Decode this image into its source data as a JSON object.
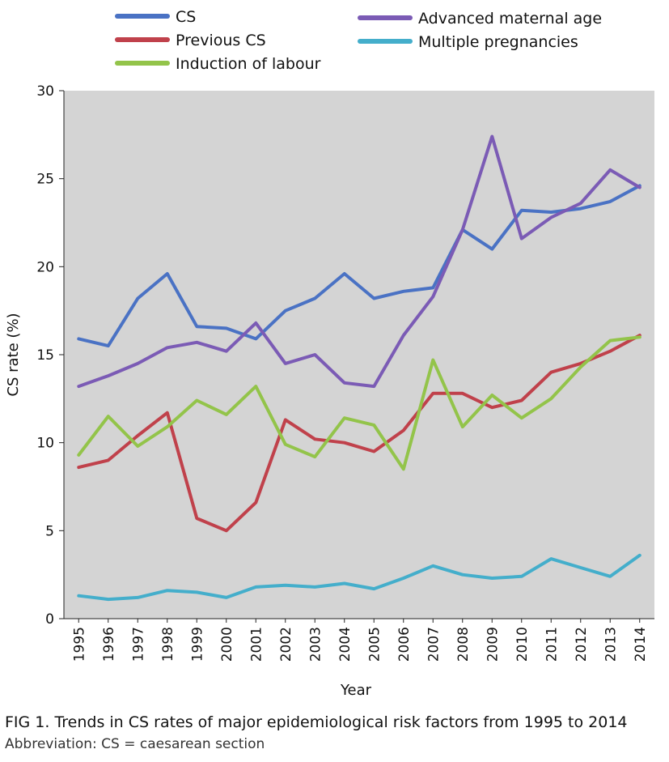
{
  "chart_data": {
    "type": "line",
    "xlabel": "Year",
    "ylabel": "CS rate (%)",
    "ylim": [
      0,
      30
    ],
    "yticks": [
      0,
      5,
      10,
      15,
      20,
      25,
      30
    ],
    "grid": false,
    "legend_position": "top",
    "categories": [
      "1995",
      "1996",
      "1997",
      "1998",
      "1999",
      "2000",
      "2001",
      "2002",
      "2003",
      "2004",
      "2005",
      "2006",
      "2007",
      "2008",
      "2009",
      "2010",
      "2011",
      "2012",
      "2013",
      "2014"
    ],
    "series": [
      {
        "name": "CS",
        "color": "#4a72c4",
        "values": [
          15.9,
          15.5,
          18.2,
          19.6,
          16.6,
          16.5,
          15.9,
          17.5,
          18.2,
          19.6,
          18.2,
          18.6,
          18.8,
          22.1,
          21.0,
          23.2,
          23.1,
          23.3,
          23.7,
          24.6
        ]
      },
      {
        "name": "Previous CS",
        "color": "#c0414b",
        "values": [
          8.6,
          9.0,
          10.4,
          11.7,
          5.7,
          5.0,
          6.6,
          11.3,
          10.2,
          10.0,
          9.5,
          10.7,
          12.8,
          12.8,
          12.0,
          12.4,
          14.0,
          14.5,
          15.2,
          16.1
        ]
      },
      {
        "name": "Induction of labour",
        "color": "#93c44a",
        "values": [
          9.3,
          11.5,
          9.8,
          10.9,
          12.4,
          11.6,
          13.2,
          9.9,
          9.2,
          11.4,
          11.0,
          8.5,
          14.7,
          10.9,
          12.7,
          11.4,
          12.5,
          14.3,
          15.8,
          16.0
        ]
      },
      {
        "name": "Advanced maternal age",
        "color": "#7b5bb5",
        "values": [
          13.2,
          13.8,
          14.5,
          15.4,
          15.7,
          15.2,
          16.8,
          14.5,
          15.0,
          13.4,
          13.2,
          16.1,
          18.3,
          22.1,
          27.4,
          21.6,
          22.8,
          23.6,
          25.5,
          24.5
        ]
      },
      {
        "name": "Multiple pregnancies",
        "color": "#44aecb",
        "values": [
          1.3,
          1.1,
          1.2,
          1.6,
          1.5,
          1.2,
          1.8,
          1.9,
          1.8,
          2.0,
          1.7,
          2.3,
          3.0,
          2.5,
          2.3,
          2.4,
          3.4,
          2.9,
          2.4,
          3.6
        ]
      }
    ]
  },
  "caption": {
    "title": "FIG 1. Trends in CS rates of major epidemiological risk factors from 1995 to 2014",
    "note": "Abbreviation: CS = caesarean section"
  }
}
